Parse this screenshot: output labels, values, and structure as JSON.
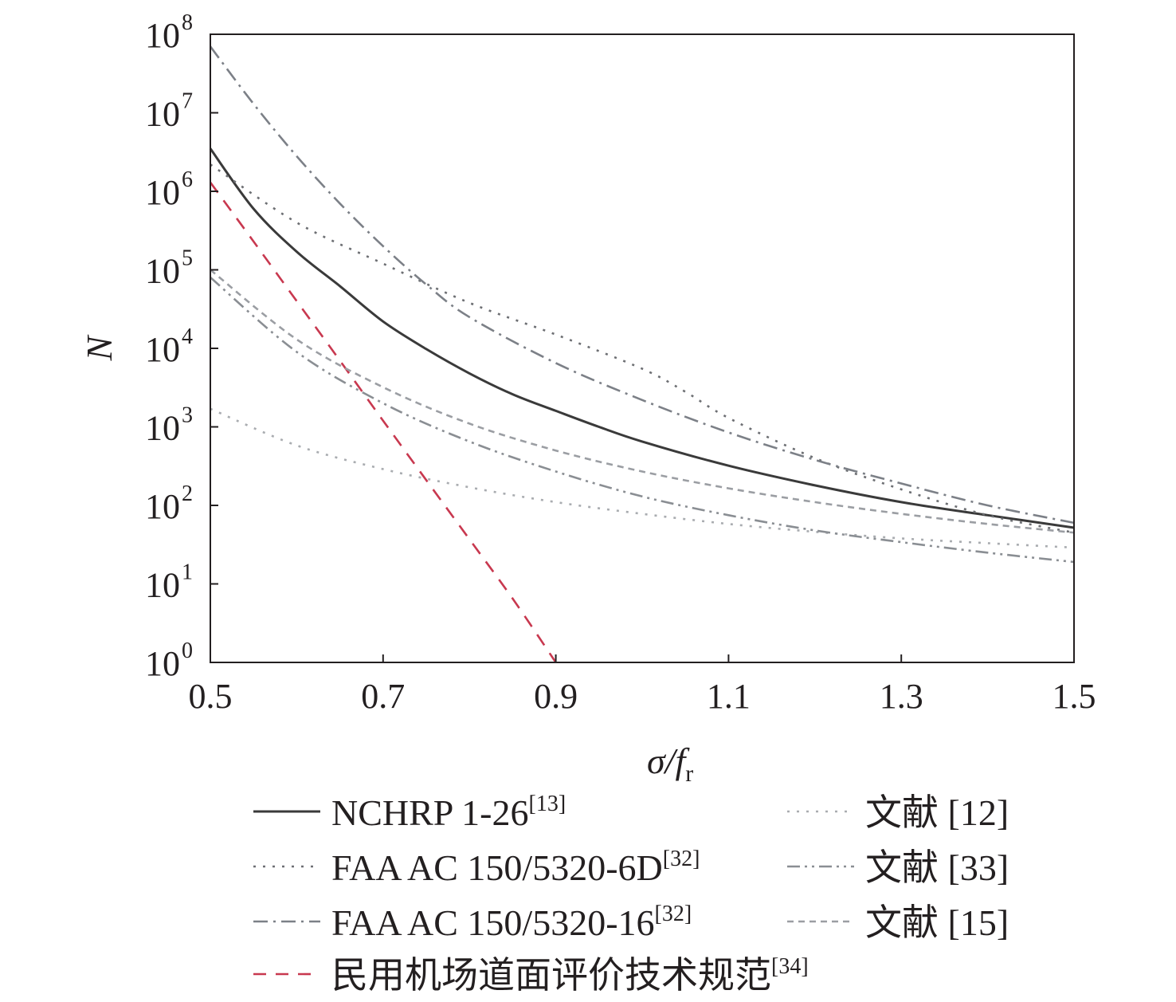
{
  "chart_data": {
    "type": "line",
    "xlabel": {
      "main": "σ/f",
      "sub": "r"
    },
    "ylabel": "N",
    "x_range": [
      0.5,
      1.5
    ],
    "y_scale": "log",
    "y_range": [
      1,
      100000000
    ],
    "x_ticks": [
      "0.5",
      "0.7",
      "0.9",
      "1.1",
      "1.3",
      "1.5"
    ],
    "y_ticks": [
      {
        "base": "10",
        "exp": "0"
      },
      {
        "base": "10",
        "exp": "1"
      },
      {
        "base": "10",
        "exp": "2"
      },
      {
        "base": "10",
        "exp": "3"
      },
      {
        "base": "10",
        "exp": "4"
      },
      {
        "base": "10",
        "exp": "5"
      },
      {
        "base": "10",
        "exp": "6"
      },
      {
        "base": "10",
        "exp": "7"
      },
      {
        "base": "10",
        "exp": "8"
      }
    ],
    "grid": false,
    "legend_position": "bottom",
    "series": [
      {
        "name": "NCHRP 1-26",
        "ref": "[13]",
        "color": "#3a3a3a",
        "style": "solid",
        "x": [
          0.5,
          0.55,
          0.6,
          0.65,
          0.7,
          0.75,
          0.8,
          0.85,
          0.9,
          0.95,
          1.0,
          1.1,
          1.2,
          1.3,
          1.4,
          1.5
        ],
        "y": [
          3500000,
          600000,
          170000,
          62000,
          22000,
          9800,
          4800,
          2600,
          1600,
          1000,
          650,
          320,
          180,
          110,
          75,
          52
        ]
      },
      {
        "name": "FAA AC 150/5320-6D",
        "ref": "[32]",
        "color": "#6d6f73",
        "style": "dotted",
        "x": [
          0.5,
          0.6,
          0.7,
          0.8,
          0.9,
          1.0,
          1.05,
          1.1,
          1.2,
          1.3,
          1.4,
          1.5
        ],
        "y": [
          2200000,
          400000,
          120000,
          38000,
          15000,
          5500,
          2800,
          1300,
          400,
          160,
          75,
          45
        ]
      },
      {
        "name": "FAA AC 150/5320-16",
        "ref": "[32]",
        "color": "#7c8087",
        "style": "dashdot",
        "x": [
          0.5,
          0.55,
          0.6,
          0.65,
          0.7,
          0.75,
          0.8,
          0.9,
          1.0,
          1.1,
          1.2,
          1.3,
          1.4,
          1.5
        ],
        "y": [
          70000000,
          13000000,
          2800000,
          700000,
          200000,
          65000,
          25000,
          6500,
          2200,
          850,
          380,
          190,
          100,
          60
        ]
      },
      {
        "name": "民用机场道面评价技术规范",
        "ref": "[34]",
        "color": "#c8384f",
        "style": "dashed",
        "x": [
          0.5,
          0.55,
          0.6,
          0.65,
          0.7,
          0.75,
          0.8,
          0.85,
          0.9
        ],
        "y": [
          1300000,
          230000,
          40000,
          7000,
          1200,
          210,
          37,
          6.5,
          1
        ]
      },
      {
        "name": "文献",
        "ref": "[12]",
        "color": "#a9acb0",
        "style": "dotted",
        "x": [
          0.5,
          0.6,
          0.7,
          0.8,
          0.9,
          1.0,
          1.1,
          1.2,
          1.3,
          1.4,
          1.5
        ],
        "y": [
          1700,
          580,
          290,
          170,
          110,
          78,
          58,
          46,
          38,
          33,
          29
        ]
      },
      {
        "name": "文献",
        "ref": "[33]",
        "color": "#8a8e93",
        "style": "dashdotdot",
        "x": [
          0.5,
          0.6,
          0.7,
          0.8,
          0.9,
          1.0,
          1.1,
          1.2,
          1.3,
          1.4,
          1.5
        ],
        "y": [
          80000,
          9000,
          2000,
          650,
          270,
          130,
          75,
          48,
          34,
          25,
          19
        ]
      },
      {
        "name": "文献",
        "ref": "[15]",
        "color": "#9b9ea3",
        "style": "shortdash",
        "x": [
          0.5,
          0.6,
          0.7,
          0.8,
          0.9,
          1.0,
          1.1,
          1.2,
          1.3,
          1.4,
          1.5
        ],
        "y": [
          100000,
          13000,
          3200,
          1100,
          500,
          270,
          165,
          110,
          78,
          58,
          45
        ]
      }
    ]
  }
}
